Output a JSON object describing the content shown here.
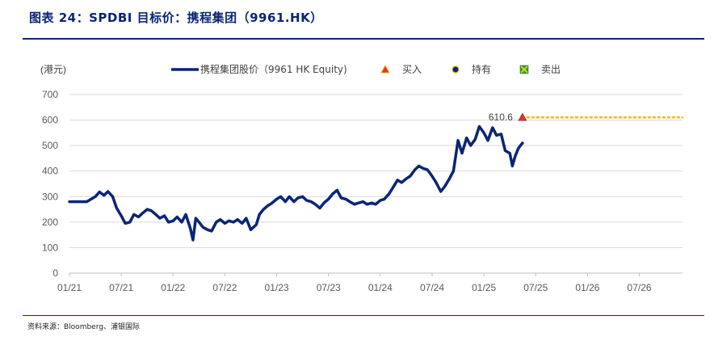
{
  "figure": {
    "title": "图表 24：SPDBI 目标价：携程集团（9961.HK）",
    "source": "资料来源：Bloomberg、浦银国际"
  },
  "chart_data": {
    "type": "line",
    "title": "",
    "ylabel": "(港元)",
    "xlabel": "",
    "ylim": [
      0,
      700
    ],
    "yticks": [
      0,
      100,
      200,
      300,
      400,
      500,
      600,
      700
    ],
    "xlim": [
      "2021-01",
      "2026-12"
    ],
    "xticks": [
      "01/21",
      "07/21",
      "01/22",
      "07/22",
      "01/23",
      "07/23",
      "01/24",
      "07/24",
      "01/25",
      "07/25",
      "01/26",
      "07/26"
    ],
    "grid": "horizontal",
    "legend": {
      "position": "top",
      "entries": [
        {
          "name": "携程集团股价（9961 HK Equity)",
          "symbol": "line",
          "color": "#0a2576"
        },
        {
          "name": "买入",
          "symbol": "triangle",
          "color": "#e8342b"
        },
        {
          "name": "持有",
          "symbol": "circle",
          "color": "#0a2576"
        },
        {
          "name": "卖出",
          "symbol": "square-x",
          "color": "#2e9e47"
        }
      ]
    },
    "series": [
      {
        "name": "携程集团股价（9961 HK Equity)",
        "color": "#0a2576",
        "points": [
          [
            "2021-01",
            280
          ],
          [
            "2021-03",
            280
          ],
          [
            "2021-04",
            300
          ],
          [
            "2021-04-15",
            318
          ],
          [
            "2021-05",
            305
          ],
          [
            "2021-05-15",
            320
          ],
          [
            "2021-06",
            300
          ],
          [
            "2021-06-15",
            255
          ],
          [
            "2021-07",
            225
          ],
          [
            "2021-07-15",
            195
          ],
          [
            "2021-08",
            200
          ],
          [
            "2021-08-15",
            230
          ],
          [
            "2021-09",
            220
          ],
          [
            "2021-09-15",
            235
          ],
          [
            "2021-10",
            250
          ],
          [
            "2021-10-15",
            245
          ],
          [
            "2021-11",
            230
          ],
          [
            "2021-11-15",
            215
          ],
          [
            "2021-12",
            225
          ],
          [
            "2021-12-15",
            200
          ],
          [
            "2022-01",
            205
          ],
          [
            "2022-01-15",
            220
          ],
          [
            "2022-02",
            200
          ],
          [
            "2022-02-15",
            230
          ],
          [
            "2022-03",
            175
          ],
          [
            "2022-03-10",
            130
          ],
          [
            "2022-03-20",
            215
          ],
          [
            "2022-04",
            200
          ],
          [
            "2022-04-15",
            180
          ],
          [
            "2022-05",
            170
          ],
          [
            "2022-05-15",
            165
          ],
          [
            "2022-06",
            200
          ],
          [
            "2022-06-15",
            210
          ],
          [
            "2022-07",
            195
          ],
          [
            "2022-07-15",
            205
          ],
          [
            "2022-08",
            200
          ],
          [
            "2022-08-15",
            210
          ],
          [
            "2022-09",
            195
          ],
          [
            "2022-09-15",
            215
          ],
          [
            "2022-10",
            170
          ],
          [
            "2022-10-20",
            190
          ],
          [
            "2022-11",
            230
          ],
          [
            "2022-11-15",
            250
          ],
          [
            "2022-12",
            265
          ],
          [
            "2022-12-15",
            275
          ],
          [
            "2023-01",
            290
          ],
          [
            "2023-01-15",
            300
          ],
          [
            "2023-02",
            280
          ],
          [
            "2023-02-15",
            300
          ],
          [
            "2023-03",
            280
          ],
          [
            "2023-03-15",
            295
          ],
          [
            "2023-04",
            300
          ],
          [
            "2023-04-15",
            285
          ],
          [
            "2023-05",
            280
          ],
          [
            "2023-05-15",
            270
          ],
          [
            "2023-06",
            255
          ],
          [
            "2023-06-15",
            275
          ],
          [
            "2023-07",
            290
          ],
          [
            "2023-07-15",
            310
          ],
          [
            "2023-08",
            325
          ],
          [
            "2023-08-15",
            295
          ],
          [
            "2023-09",
            290
          ],
          [
            "2023-09-15",
            280
          ],
          [
            "2023-10",
            270
          ],
          [
            "2023-10-15",
            275
          ],
          [
            "2023-11",
            280
          ],
          [
            "2023-11-15",
            270
          ],
          [
            "2023-12",
            275
          ],
          [
            "2023-12-15",
            270
          ],
          [
            "2024-01",
            285
          ],
          [
            "2024-01-15",
            290
          ],
          [
            "2024-02",
            310
          ],
          [
            "2024-02-15",
            335
          ],
          [
            "2024-03",
            365
          ],
          [
            "2024-03-15",
            355
          ],
          [
            "2024-04",
            370
          ],
          [
            "2024-04-15",
            380
          ],
          [
            "2024-05",
            405
          ],
          [
            "2024-05-15",
            420
          ],
          [
            "2024-06",
            410
          ],
          [
            "2024-06-15",
            405
          ],
          [
            "2024-07",
            380
          ],
          [
            "2024-07-15",
            355
          ],
          [
            "2024-08",
            320
          ],
          [
            "2024-08-15",
            340
          ],
          [
            "2024-09",
            370
          ],
          [
            "2024-09-15",
            400
          ],
          [
            "2024-10",
            520
          ],
          [
            "2024-10-15",
            470
          ],
          [
            "2024-11",
            530
          ],
          [
            "2024-11-15",
            500
          ],
          [
            "2024-12",
            525
          ],
          [
            "2024-12-15",
            575
          ],
          [
            "2025-01",
            550
          ],
          [
            "2025-01-15",
            520
          ],
          [
            "2025-02",
            570
          ],
          [
            "2025-02-15",
            540
          ],
          [
            "2025-03",
            545
          ],
          [
            "2025-03-15",
            480
          ],
          [
            "2025-04",
            470
          ],
          [
            "2025-04-10",
            420
          ],
          [
            "2025-04-20",
            460
          ],
          [
            "2025-05",
            490
          ],
          [
            "2025-05-15",
            510
          ]
        ]
      }
    ],
    "markers": [
      {
        "type": "买入",
        "date": "2025-05-15",
        "value": 610.6,
        "label": "610.6",
        "target_line_until": "2026-12"
      }
    ]
  }
}
